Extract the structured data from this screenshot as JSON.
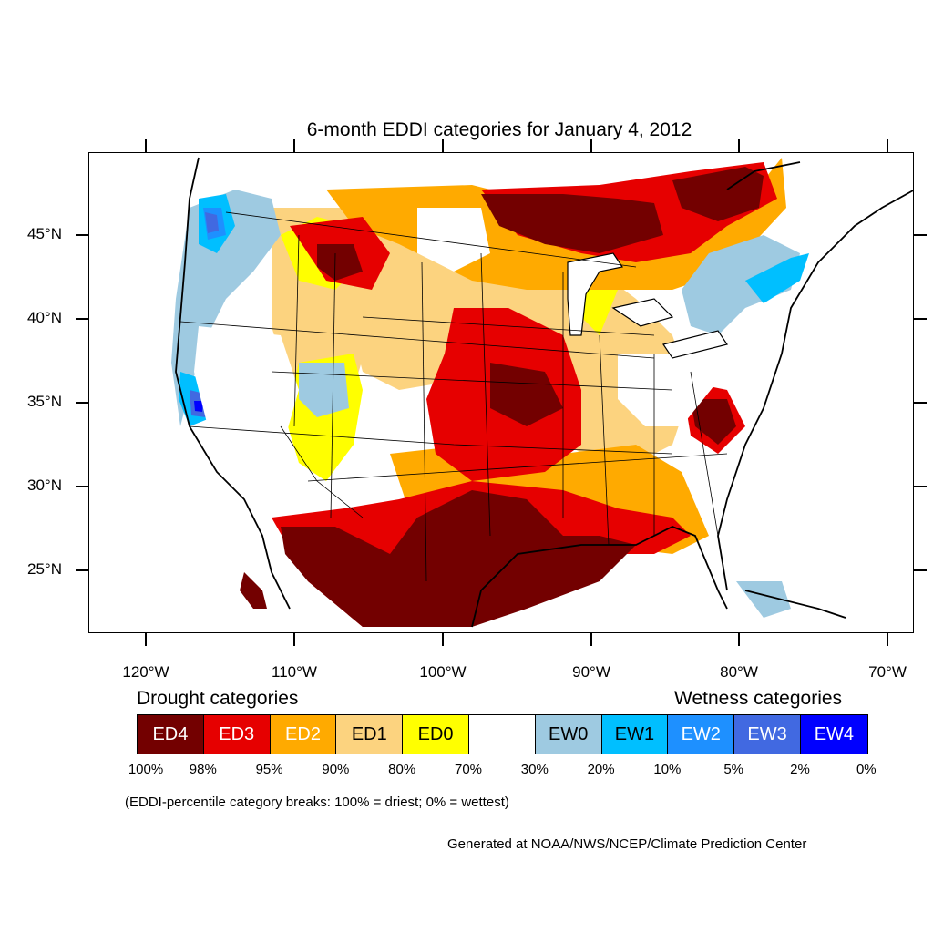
{
  "title": "6-month EDDI categories for January 4, 2012",
  "lat_labels": [
    "45°N",
    "40°N",
    "35°N",
    "30°N",
    "25°N"
  ],
  "lon_labels": [
    "120°W",
    "110°W",
    "100°W",
    "90°W",
    "80°W",
    "70°W"
  ],
  "legend": {
    "drought_heading": "Drought categories",
    "wetness_heading": "Wetness categories",
    "categories": [
      {
        "label": "ED4",
        "color": "#730000",
        "text_color": "#ffffff"
      },
      {
        "label": "ED3",
        "color": "#e60000",
        "text_color": "#ffffff"
      },
      {
        "label": "ED2",
        "color": "#ffaa00",
        "text_color": "#ffffff"
      },
      {
        "label": "ED1",
        "color": "#fcd37f",
        "text_color": "#000000"
      },
      {
        "label": "ED0",
        "color": "#ffff00",
        "text_color": "#000000"
      },
      {
        "label": "",
        "color": "#ffffff",
        "text_color": "#000000"
      },
      {
        "label": "EW0",
        "color": "#9ecae1",
        "text_color": "#000000"
      },
      {
        "label": "EW1",
        "color": "#00bfff",
        "text_color": "#000000"
      },
      {
        "label": "EW2",
        "color": "#1e90ff",
        "text_color": "#ffffff"
      },
      {
        "label": "EW3",
        "color": "#4169e1",
        "text_color": "#ffffff"
      },
      {
        "label": "EW4",
        "color": "#0000ff",
        "text_color": "#ffffff"
      }
    ],
    "percentiles": [
      "100%",
      "98%",
      "95%",
      "90%",
      "80%",
      "70%",
      "30%",
      "20%",
      "10%",
      "5%",
      "2%",
      "0%"
    ]
  },
  "note": "(EDDI-percentile category breaks: 100% = driest; 0% = wettest)",
  "credit": "Generated at NOAA/NWS/NCEP/Climate Prediction Center"
}
